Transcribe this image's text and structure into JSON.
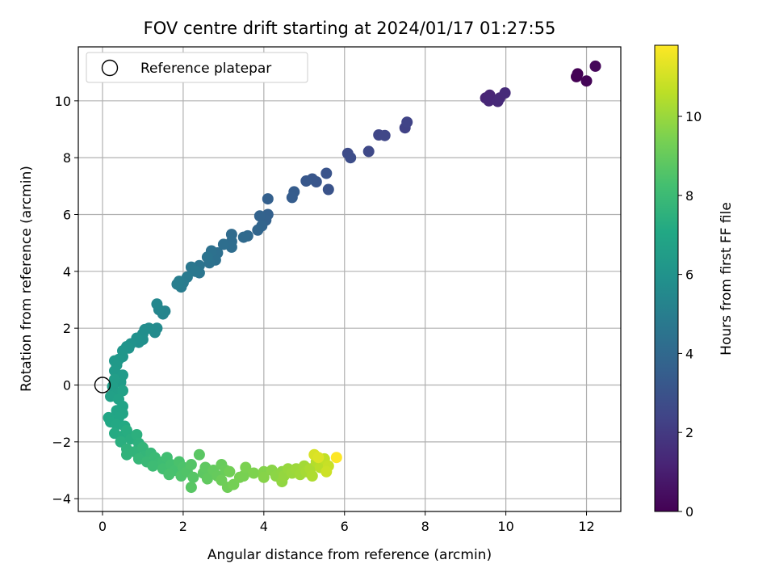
{
  "chart_data": {
    "type": "scatter",
    "title": "FOV centre drift starting at 2024/01/17 01:27:55",
    "xlabel": "Angular distance from reference (arcmin)",
    "ylabel": "Rotation from reference (arcmin)",
    "xlim": [
      -0.6,
      12.85
    ],
    "ylim": [
      -4.45,
      11.9
    ],
    "xticks": [
      0,
      2,
      4,
      6,
      8,
      10,
      12
    ],
    "yticks": [
      -4,
      -2,
      0,
      2,
      4,
      6,
      8,
      10
    ],
    "xtick_labels": [
      "0",
      "2",
      "4",
      "6",
      "8",
      "10",
      "12"
    ],
    "ytick_labels": [
      "−4",
      "−2",
      "0",
      "2",
      "4",
      "6",
      "8",
      "10"
    ],
    "grid": true,
    "legend": {
      "position": "top-left",
      "entries": [
        "Reference platepar"
      ]
    },
    "reference_point": {
      "name": "Reference platepar",
      "x": 0,
      "y": 0
    },
    "colorbar": {
      "label": "Hours from first FF file",
      "colormap": "viridis",
      "range": [
        0,
        11.8
      ],
      "ticks": [
        0,
        2,
        4,
        6,
        8,
        10
      ],
      "tick_labels": [
        "0",
        "2",
        "4",
        "6",
        "8",
        "10"
      ]
    },
    "series": [
      {
        "points": [
          [
            11.75,
            10.85,
            0.0
          ],
          [
            11.78,
            10.95,
            0.05
          ],
          [
            12.0,
            10.7,
            0.12
          ],
          [
            12.22,
            11.22,
            0.2
          ],
          [
            9.5,
            10.1,
            1.2
          ],
          [
            9.6,
            10.2,
            1.25
          ],
          [
            9.58,
            10.0,
            1.3
          ],
          [
            9.8,
            9.98,
            1.35
          ],
          [
            9.85,
            10.1,
            1.4
          ],
          [
            9.98,
            10.28,
            1.45
          ],
          [
            7.5,
            9.05,
            2.3
          ],
          [
            7.55,
            9.25,
            2.35
          ],
          [
            6.85,
            8.8,
            2.45
          ],
          [
            7.0,
            8.78,
            2.5
          ],
          [
            6.6,
            8.22,
            2.6
          ],
          [
            6.08,
            8.15,
            2.7
          ],
          [
            6.15,
            8.0,
            2.75
          ],
          [
            5.6,
            6.88,
            3.0
          ],
          [
            5.55,
            7.45,
            3.05
          ],
          [
            5.3,
            7.15,
            3.1
          ],
          [
            5.2,
            7.25,
            3.15
          ],
          [
            5.05,
            7.18,
            3.2
          ],
          [
            4.75,
            6.8,
            3.4
          ],
          [
            4.7,
            6.6,
            3.45
          ],
          [
            4.1,
            6.55,
            3.6
          ],
          [
            4.1,
            6.0,
            3.65
          ],
          [
            4.05,
            5.8,
            3.7
          ],
          [
            3.9,
            5.95,
            3.75
          ],
          [
            3.95,
            5.6,
            3.8
          ],
          [
            3.85,
            5.45,
            3.85
          ],
          [
            3.6,
            5.25,
            4.0
          ],
          [
            3.5,
            5.2,
            4.05
          ],
          [
            3.2,
            5.3,
            4.1
          ],
          [
            3.2,
            5.05,
            4.15
          ],
          [
            3.2,
            4.85,
            4.2
          ],
          [
            3.0,
            4.95,
            4.25
          ],
          [
            2.85,
            4.65,
            4.3
          ],
          [
            2.8,
            4.4,
            4.35
          ],
          [
            2.7,
            4.72,
            4.4
          ],
          [
            2.65,
            4.3,
            4.45
          ],
          [
            2.6,
            4.5,
            4.5
          ],
          [
            2.4,
            4.2,
            4.55
          ],
          [
            2.4,
            3.95,
            4.6
          ],
          [
            2.2,
            4.15,
            4.65
          ],
          [
            2.3,
            4.0,
            4.7
          ],
          [
            2.1,
            3.8,
            4.8
          ],
          [
            2.0,
            3.6,
            4.85
          ],
          [
            1.95,
            3.45,
            4.9
          ],
          [
            1.9,
            3.65,
            4.95
          ],
          [
            1.85,
            3.55,
            5.0
          ],
          [
            1.55,
            2.6,
            5.3
          ],
          [
            1.5,
            2.5,
            5.35
          ],
          [
            1.4,
            2.65,
            5.4
          ],
          [
            1.35,
            2.85,
            5.45
          ],
          [
            1.35,
            2.0,
            5.55
          ],
          [
            1.3,
            1.85,
            5.6
          ],
          [
            1.15,
            2.0,
            5.65
          ],
          [
            1.05,
            1.95,
            5.7
          ],
          [
            1.0,
            1.8,
            5.75
          ],
          [
            1.0,
            1.6,
            5.8
          ],
          [
            0.9,
            1.5,
            5.85
          ],
          [
            0.85,
            1.65,
            5.9
          ],
          [
            0.7,
            1.45,
            5.95
          ],
          [
            0.65,
            1.3,
            6.0
          ],
          [
            0.6,
            1.35,
            6.05
          ],
          [
            0.5,
            1.2,
            6.1
          ],
          [
            0.5,
            1.0,
            6.15
          ],
          [
            0.4,
            0.9,
            6.2
          ],
          [
            0.3,
            0.85,
            6.25
          ],
          [
            0.35,
            0.7,
            6.3
          ],
          [
            0.3,
            0.5,
            6.35
          ],
          [
            0.5,
            0.35,
            6.4
          ],
          [
            0.45,
            0.1,
            6.45
          ],
          [
            0.3,
            0.2,
            6.5
          ],
          [
            0.25,
            -0.05,
            6.55
          ],
          [
            0.35,
            -0.3,
            6.6
          ],
          [
            0.2,
            -0.4,
            6.65
          ],
          [
            0.5,
            -0.2,
            6.7
          ],
          [
            0.4,
            -0.5,
            6.75
          ],
          [
            0.5,
            -0.75,
            6.8
          ],
          [
            0.35,
            -0.9,
            6.85
          ],
          [
            0.5,
            -1.0,
            6.9
          ],
          [
            0.4,
            -1.15,
            6.95
          ],
          [
            0.15,
            -1.15,
            7.0
          ],
          [
            0.2,
            -1.3,
            7.05
          ],
          [
            0.35,
            -1.4,
            7.1
          ],
          [
            0.55,
            -1.45,
            7.15
          ],
          [
            0.3,
            -1.7,
            7.2
          ],
          [
            0.5,
            -1.8,
            7.25
          ],
          [
            0.6,
            -1.6,
            7.3
          ],
          [
            0.7,
            -1.9,
            7.35
          ],
          [
            0.45,
            -2.0,
            7.4
          ],
          [
            0.85,
            -1.75,
            7.45
          ],
          [
            0.9,
            -2.05,
            7.5
          ],
          [
            0.6,
            -2.25,
            7.55
          ],
          [
            0.6,
            -2.45,
            7.6
          ],
          [
            0.8,
            -2.35,
            7.65
          ],
          [
            1.0,
            -2.2,
            7.7
          ],
          [
            1.05,
            -2.5,
            7.75
          ],
          [
            0.9,
            -2.6,
            7.8
          ],
          [
            1.2,
            -2.4,
            7.85
          ],
          [
            1.1,
            -2.7,
            7.9
          ],
          [
            1.3,
            -2.55,
            7.95
          ],
          [
            1.4,
            -2.75,
            8.0
          ],
          [
            1.25,
            -2.85,
            8.05
          ],
          [
            1.5,
            -2.7,
            8.1
          ],
          [
            1.6,
            -2.55,
            8.15
          ],
          [
            1.5,
            -2.95,
            8.2
          ],
          [
            1.7,
            -2.8,
            8.25
          ],
          [
            1.8,
            -3.0,
            8.3
          ],
          [
            1.65,
            -3.15,
            8.35
          ],
          [
            1.9,
            -2.7,
            8.4
          ],
          [
            2.0,
            -2.9,
            8.45
          ],
          [
            1.95,
            -3.2,
            8.5
          ],
          [
            2.1,
            -3.05,
            8.55
          ],
          [
            2.2,
            -2.8,
            8.6
          ],
          [
            2.25,
            -3.25,
            8.65
          ],
          [
            2.2,
            -3.6,
            8.7
          ],
          [
            2.4,
            -2.45,
            8.75
          ],
          [
            2.5,
            -3.1,
            8.8
          ],
          [
            2.55,
            -2.9,
            8.85
          ],
          [
            2.6,
            -3.3,
            8.9
          ],
          [
            2.75,
            -3.0,
            8.95
          ],
          [
            2.85,
            -3.2,
            9.0
          ],
          [
            2.95,
            -2.8,
            9.05
          ],
          [
            3.05,
            -3.0,
            9.1
          ],
          [
            2.95,
            -3.35,
            9.15
          ],
          [
            3.1,
            -3.6,
            9.2
          ],
          [
            3.15,
            -3.05,
            9.25
          ],
          [
            3.25,
            -3.5,
            9.3
          ],
          [
            3.4,
            -3.25,
            9.35
          ],
          [
            3.5,
            -3.2,
            9.4
          ],
          [
            3.55,
            -2.9,
            9.45
          ],
          [
            3.75,
            -3.1,
            9.5
          ],
          [
            4.0,
            -3.05,
            9.6
          ],
          [
            4.0,
            -3.25,
            9.65
          ],
          [
            4.2,
            -3.0,
            9.7
          ],
          [
            4.3,
            -3.2,
            9.75
          ],
          [
            4.45,
            -3.05,
            9.8
          ],
          [
            4.45,
            -3.4,
            9.85
          ],
          [
            4.5,
            -3.2,
            9.9
          ],
          [
            4.6,
            -2.95,
            9.95
          ],
          [
            4.7,
            -3.1,
            10.0
          ],
          [
            4.8,
            -2.95,
            10.05
          ],
          [
            4.9,
            -3.15,
            10.1
          ],
          [
            5.0,
            -2.85,
            10.15
          ],
          [
            5.05,
            -3.05,
            10.2
          ],
          [
            5.15,
            -2.95,
            10.3
          ],
          [
            5.2,
            -3.2,
            10.35
          ],
          [
            5.3,
            -2.7,
            10.45
          ],
          [
            5.4,
            -2.9,
            10.55
          ],
          [
            5.5,
            -2.6,
            10.7
          ],
          [
            5.6,
            -2.85,
            10.8
          ],
          [
            5.55,
            -3.05,
            10.9
          ],
          [
            5.25,
            -2.45,
            11.1
          ],
          [
            5.35,
            -2.55,
            11.2
          ],
          [
            5.8,
            -2.55,
            11.8
          ]
        ]
      }
    ]
  }
}
